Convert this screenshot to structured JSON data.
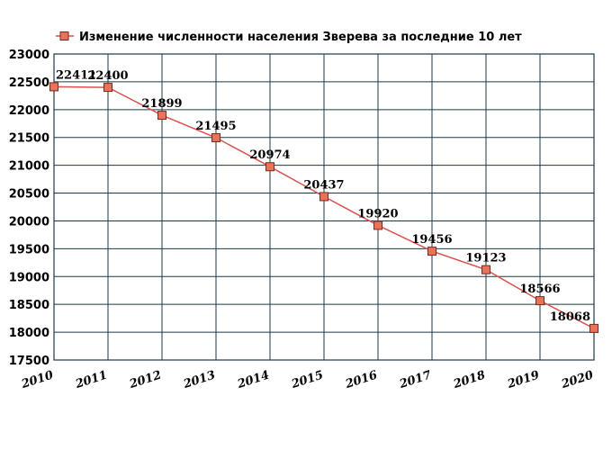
{
  "chart_data": {
    "type": "line",
    "title": "",
    "xlabel": "",
    "ylabel": "",
    "x": [
      "2010",
      "2011",
      "2012",
      "2013",
      "2014",
      "2015",
      "2016",
      "2017",
      "2018",
      "2019",
      "2020"
    ],
    "series": [
      {
        "name": "Изменение численности населения Зверева за последние 10 лет",
        "values": [
          22411,
          22400,
          21899,
          21495,
          20974,
          20437,
          19920,
          19456,
          19123,
          18566,
          18068
        ],
        "labels": [
          "22411",
          "22400",
          "21899",
          "21495",
          "20974",
          "20437",
          "19920",
          "19456",
          "19123",
          "18566",
          "18068"
        ]
      }
    ],
    "ylim": [
      17500,
      23000
    ],
    "yticks": [
      "17500",
      "18000",
      "18500",
      "19000",
      "19500",
      "20000",
      "20500",
      "21000",
      "21500",
      "22000",
      "22500",
      "23000"
    ],
    "grid": true,
    "legend_position": "top-left",
    "colors": {
      "line": "#d9534f",
      "marker_fill": "#e8735a",
      "marker_edge": "#7a2a1a",
      "grid": "#1c3a4a",
      "plot_bg": "#ffffff"
    }
  }
}
